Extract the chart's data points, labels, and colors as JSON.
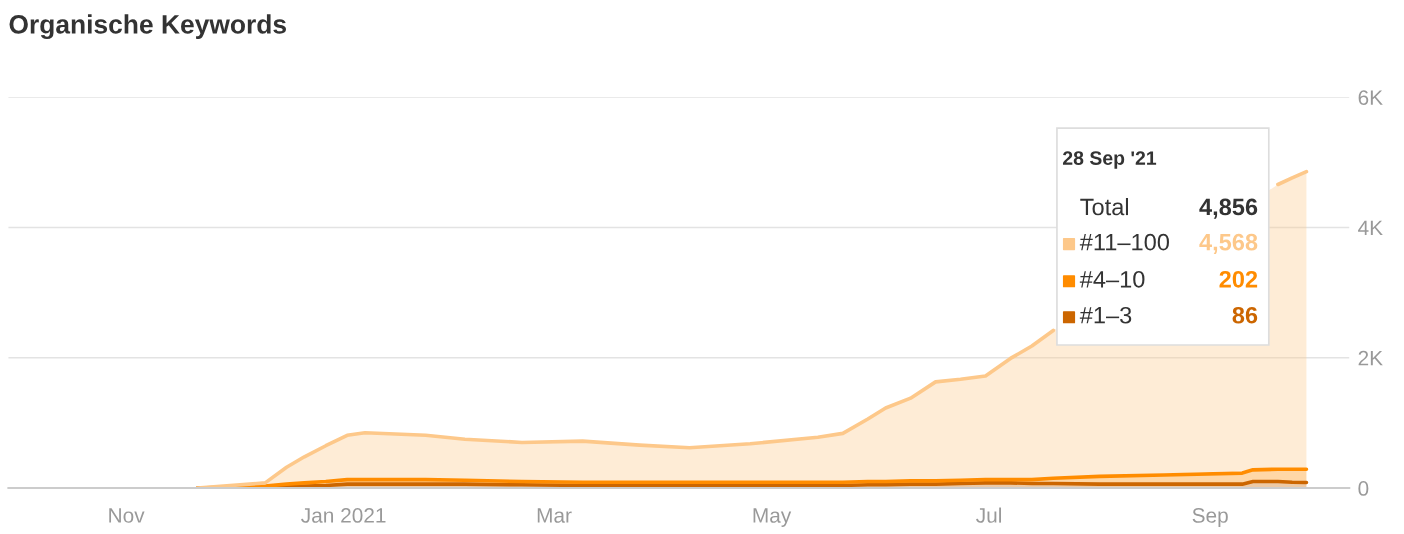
{
  "chart_data": {
    "type": "area",
    "stacked": true,
    "title": "Organische Keywords",
    "x": [
      "2020-11-21",
      "2020-12-10",
      "2020-12-16",
      "2020-12-21",
      "2020-12-27",
      "2021-01-02",
      "2021-01-07",
      "2021-01-24",
      "2021-02-04",
      "2021-02-20",
      "2021-03-09",
      "2021-03-25",
      "2021-04-08",
      "2021-04-25",
      "2021-05-14",
      "2021-05-21",
      "2021-05-28",
      "2021-06-02",
      "2021-06-09",
      "2021-06-16",
      "2021-06-23",
      "2021-06-30",
      "2021-07-07",
      "2021-07-13",
      "2021-07-19",
      "2021-08-01",
      "2021-08-19",
      "2021-09-10",
      "2021-09-13",
      "2021-09-20",
      "2021-09-24",
      "2021-09-28"
    ],
    "series": [
      {
        "name": "#1–3",
        "color": "#cc6600",
        "values": [
          0,
          10,
          20,
          30,
          40,
          60,
          60,
          60,
          60,
          50,
          40,
          40,
          40,
          40,
          40,
          40,
          50,
          50,
          60,
          60,
          70,
          80,
          80,
          70,
          70,
          60,
          60,
          60,
          100,
          100,
          90,
          86
        ]
      },
      {
        "name": "#4–10",
        "color": "#ff8c00",
        "values": [
          0,
          20,
          40,
          50,
          60,
          70,
          70,
          70,
          60,
          50,
          50,
          50,
          50,
          50,
          50,
          50,
          50,
          50,
          50,
          50,
          50,
          50,
          50,
          60,
          80,
          120,
          140,
          170,
          180,
          190,
          200,
          202
        ]
      },
      {
        "name": "#11–100",
        "color": "#fdc88a",
        "values": [
          0,
          50,
          260,
          400,
          550,
          680,
          720,
          680,
          630,
          600,
          630,
          570,
          530,
          590,
          690,
          750,
          960,
          1130,
          1270,
          1520,
          1550,
          1590,
          1860,
          2050,
          2270,
          null,
          null,
          null,
          null,
          4370,
          4470,
          4568
        ]
      }
    ],
    "annotations": [
      "28 Sep '21",
      "Total",
      "4,856",
      "4,568",
      "202",
      "86"
    ],
    "xlim": [
      "2020-09-29",
      "2021-10-10"
    ],
    "xticks": [
      {
        "value": "2020-11-01",
        "label": "Nov"
      },
      {
        "value": "2021-01-01",
        "label": "Jan 2021"
      },
      {
        "value": "2021-03-01",
        "label": "Mar"
      },
      {
        "value": "2021-05-01",
        "label": "May"
      },
      {
        "value": "2021-07-01",
        "label": "Jul"
      },
      {
        "value": "2021-09-01",
        "label": "Sep"
      }
    ],
    "ylim": [
      0,
      6000
    ],
    "yticks": [
      0,
      {
        "value": 2000,
        "label": "2K"
      },
      {
        "value": 4000,
        "label": "4K"
      },
      {
        "value": 6000,
        "label": "6K"
      }
    ],
    "grid": "y",
    "legend": "top right"
  }
}
